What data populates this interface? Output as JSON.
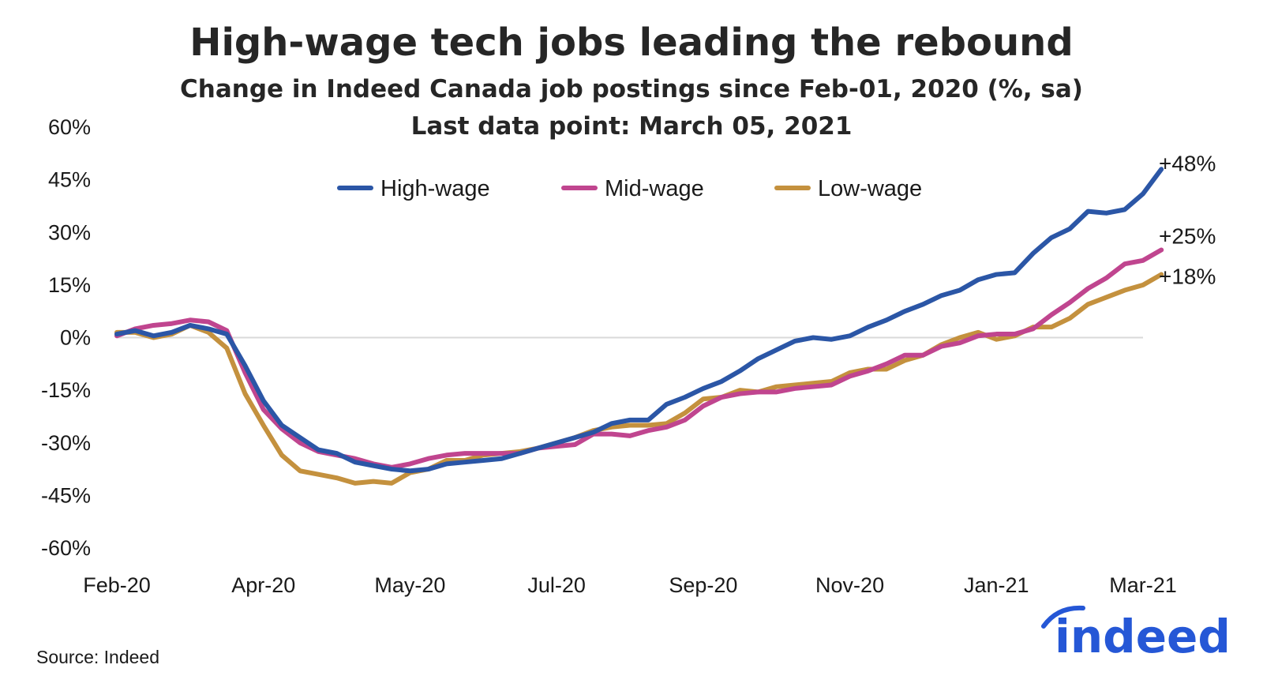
{
  "chart_data": {
    "type": "line",
    "title": "High-wage tech jobs leading the rebound",
    "subtitle": "Change in Indeed Canada job postings since Feb-01, 2020 (%, sa)",
    "subtitle2": "Last data point: March 05, 2021",
    "xlabel": "",
    "ylabel": "",
    "ylim": [
      -60,
      60
    ],
    "y_ticks": [
      60,
      45,
      30,
      15,
      0,
      -15,
      -30,
      -45,
      -60
    ],
    "y_tick_labels": [
      "60%",
      "45%",
      "30%",
      "15%",
      "0%",
      "-15%",
      "-30%",
      "-45%",
      "-60%"
    ],
    "x_range": [
      0,
      56
    ],
    "x_ticks": [
      0,
      8,
      16,
      24,
      32,
      40,
      48,
      56
    ],
    "x_tick_labels": [
      "Feb-20",
      "Apr-20",
      "May-20",
      "Jul-20",
      "Sep-20",
      "Nov-20",
      "Jan-21",
      "Mar-21"
    ],
    "legend_position": "top-center",
    "grid": false,
    "series": [
      {
        "name": "High-wage",
        "color": "#2b56a6",
        "end_label": "+48%",
        "values": [
          1,
          2,
          0.5,
          1.5,
          3.5,
          2.5,
          1,
          -8,
          -18,
          -25,
          -28.5,
          -32,
          -33,
          -35.5,
          -36.5,
          -37.5,
          -38,
          -37.5,
          -36,
          -35.5,
          -35,
          -34.5,
          -33,
          -31.5,
          -30,
          -28.5,
          -27,
          -24.5,
          -23.5,
          -23.5,
          -19,
          -17,
          -14.5,
          -12.5,
          -9.5,
          -6,
          -3.5,
          -1,
          0,
          -0.5,
          0.5,
          3,
          5,
          7.5,
          9.5,
          12,
          13.5,
          16.5,
          18,
          18.5,
          24,
          28.5,
          31,
          36,
          35.5,
          36.5,
          41,
          48
        ]
      },
      {
        "name": "Mid-wage",
        "color": "#c0458f",
        "end_label": "+25%",
        "values": [
          0.5,
          2.5,
          3.5,
          4,
          5,
          4.5,
          2,
          -10,
          -20.5,
          -26,
          -30,
          -32.5,
          -33.5,
          -34.5,
          -36,
          -37,
          -36,
          -34.5,
          -33.5,
          -33,
          -33,
          -33,
          -33,
          -31.5,
          -31,
          -30.5,
          -27.5,
          -27.5,
          -28,
          -26.5,
          -25.5,
          -23.5,
          -19.5,
          -17,
          -16,
          -15.5,
          -15.5,
          -14.5,
          -14,
          -13.5,
          -11,
          -9.5,
          -7.5,
          -5,
          -5,
          -2.5,
          -1.5,
          0.5,
          1,
          1,
          2.5,
          6.5,
          10,
          14,
          17,
          21,
          22,
          25
        ]
      },
      {
        "name": "Low-wage",
        "color": "#c4913e",
        "end_label": "+18%",
        "values": [
          1.5,
          1.5,
          0,
          1,
          3.5,
          1.5,
          -3,
          -16,
          -25,
          -33.5,
          -38,
          -39,
          -40,
          -41.5,
          -41,
          -41.5,
          -38.5,
          -37.5,
          -35,
          -35,
          -33.5,
          -33,
          -32.5,
          -31.5,
          -30,
          -28.5,
          -26.5,
          -25.5,
          -25,
          -25,
          -24.5,
          -21.5,
          -17.5,
          -17,
          -15,
          -15.5,
          -14,
          -13.5,
          -13,
          -12.5,
          -10,
          -9,
          -9,
          -6.5,
          -5,
          -2,
          0,
          1.5,
          -0.5,
          0.5,
          3,
          3,
          5.5,
          9.5,
          11.5,
          13.5,
          15,
          18
        ]
      }
    ]
  },
  "source": "Source: Indeed",
  "logo": {
    "text": "indeed",
    "color": "#2557d6"
  }
}
